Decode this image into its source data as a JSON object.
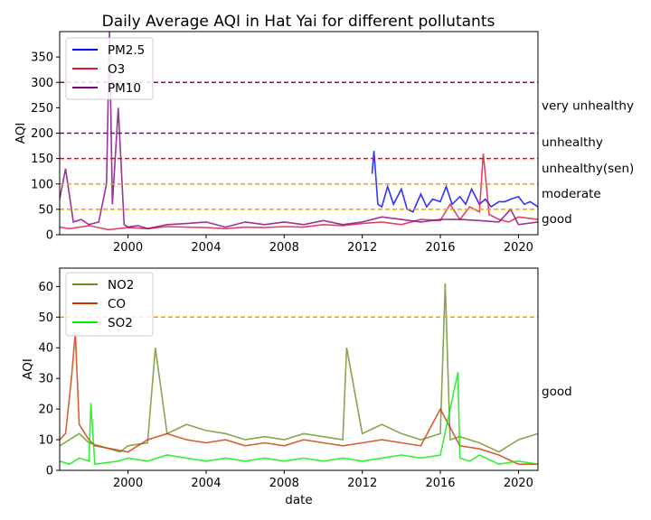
{
  "chart_data": [
    {
      "type": "line",
      "title": "Daily Average AQI in Hat Yai for different pollutants",
      "xlabel": "",
      "ylabel": "AQI",
      "xlim": [
        1996.5,
        2021.0
      ],
      "ylim": [
        0,
        400
      ],
      "xticks": [
        2000,
        2004,
        2008,
        2012,
        2016,
        2020
      ],
      "xtick_labels": [
        "2000",
        "2004",
        "2008",
        "2012",
        "2016",
        "2020"
      ],
      "yticks": [
        0,
        50,
        100,
        150,
        200,
        250,
        300,
        350
      ],
      "yticks_labels": [
        "0",
        "50",
        "100",
        "150",
        "200",
        "250",
        "300",
        "350"
      ],
      "legend": "top-left",
      "grid": false,
      "series": [
        {
          "name": "PM2.5",
          "color": "#0000ff",
          "x": [
            2012.5,
            2012.6,
            2012.8,
            2013.0,
            2013.3,
            2013.6,
            2014.0,
            2014.3,
            2014.6,
            2015.0,
            2015.3,
            2015.6,
            2016.0,
            2016.3,
            2016.6,
            2017.0,
            2017.3,
            2017.6,
            2018.0,
            2018.3,
            2018.6,
            2019.0,
            2019.3,
            2019.6,
            2020.0,
            2020.3,
            2020.6,
            2021.0
          ],
          "y": [
            120,
            165,
            60,
            55,
            95,
            60,
            90,
            50,
            45,
            80,
            55,
            70,
            65,
            95,
            60,
            75,
            60,
            90,
            60,
            70,
            55,
            65,
            65,
            70,
            75,
            60,
            65,
            55
          ]
        },
        {
          "name": "O3",
          "color": "#dc143c",
          "x": [
            1996.5,
            1997.0,
            1998.0,
            1999.0,
            2000.0,
            2001.0,
            2002.0,
            2003.0,
            2004.0,
            2005.0,
            2006.0,
            2007.0,
            2008.0,
            2009.0,
            2010.0,
            2011.0,
            2012.0,
            2013.0,
            2014.0,
            2015.0,
            2016.0,
            2016.5,
            2017.0,
            2017.5,
            2018.0,
            2018.2,
            2018.5,
            2019.0,
            2019.5,
            2020.0,
            2021.0
          ],
          "y": [
            15,
            12,
            18,
            10,
            14,
            12,
            16,
            15,
            14,
            12,
            15,
            14,
            16,
            15,
            20,
            18,
            22,
            25,
            20,
            30,
            28,
            60,
            30,
            55,
            45,
            160,
            40,
            30,
            25,
            35,
            30
          ]
        },
        {
          "name": "PM10",
          "color": "#800080",
          "x": [
            1996.5,
            1996.8,
            1997.2,
            1997.6,
            1998.0,
            1998.5,
            1998.9,
            1999.05,
            1999.2,
            1999.5,
            1999.8,
            2000.0,
            2000.5,
            2001.0,
            2002.0,
            2003.0,
            2004.0,
            2005.0,
            2006.0,
            2007.0,
            2008.0,
            2009.0,
            2010.0,
            2011.0,
            2012.0,
            2013.0,
            2014.0,
            2015.0,
            2016.0,
            2017.0,
            2018.0,
            2019.0,
            2019.6,
            2020.0,
            2021.0
          ],
          "y": [
            70,
            130,
            25,
            30,
            20,
            25,
            100,
            400,
            60,
            250,
            20,
            15,
            18,
            12,
            20,
            22,
            25,
            15,
            25,
            20,
            25,
            20,
            28,
            20,
            25,
            35,
            30,
            25,
            30,
            30,
            28,
            25,
            50,
            20,
            25
          ]
        }
      ],
      "threshold_lines": [
        {
          "value": 300,
          "color": "#800080",
          "label": "very unhealthy",
          "label_y": 255
        },
        {
          "value": 200,
          "color": "#800080",
          "label": "unhealthy",
          "label_y": 183
        },
        {
          "value": 150,
          "color": "#ff0000",
          "label": "unhealthy(sen)",
          "label_y": 132
        },
        {
          "value": 100,
          "color": "#e6a500",
          "label": "moderate",
          "label_y": 82
        },
        {
          "value": 50,
          "color": "#e6a500",
          "label": "good",
          "label_y": 32
        }
      ]
    },
    {
      "type": "line",
      "title": "",
      "xlabel": "date",
      "ylabel": "AQI",
      "xlim": [
        1996.5,
        2021.0
      ],
      "ylim": [
        0,
        66
      ],
      "xticks": [
        2000,
        2004,
        2008,
        2012,
        2016,
        2020
      ],
      "xtick_labels": [
        "2000",
        "2004",
        "2008",
        "2012",
        "2016",
        "2020"
      ],
      "yticks": [
        0,
        10,
        20,
        30,
        40,
        50,
        60
      ],
      "yticks_labels": [
        "0",
        "10",
        "20",
        "30",
        "40",
        "50",
        "60"
      ],
      "legend": "top-left",
      "grid": false,
      "series": [
        {
          "name": "NO2",
          "color": "#6b8e23",
          "x": [
            1996.5,
            1997.0,
            1997.5,
            1998.0,
            1999.6,
            2000.0,
            2001.0,
            2001.4,
            2002.0,
            2003.0,
            2004.0,
            2005.0,
            2006.0,
            2007.0,
            2008.0,
            2009.0,
            2010.0,
            2011.0,
            2011.2,
            2012.0,
            2013.0,
            2014.0,
            2015.0,
            2016.0,
            2016.25,
            2016.5,
            2017.0,
            2018.0,
            2019.0,
            2020.0,
            2021.0
          ],
          "y": [
            8,
            10,
            12,
            9,
            6,
            8,
            9,
            40,
            12,
            15,
            13,
            12,
            10,
            11,
            10,
            12,
            11,
            10,
            40,
            12,
            15,
            12,
            10,
            12,
            61,
            10,
            11,
            9,
            6,
            10,
            12
          ]
        },
        {
          "name": "CO",
          "color": "#cd3700",
          "x": [
            1996.5,
            1996.8,
            1997.1,
            1997.3,
            1997.5,
            1998.0,
            1998.3,
            2000.0,
            2001.0,
            2002.0,
            2003.0,
            2004.0,
            2005.0,
            2006.0,
            2007.0,
            2008.0,
            2009.0,
            2010.0,
            2011.0,
            2012.0,
            2013.0,
            2014.0,
            2015.0,
            2016.0,
            2017.0,
            2018.0,
            2019.0,
            2020.0,
            2021.0
          ],
          "y": [
            10,
            12,
            30,
            45,
            15,
            10,
            8,
            6,
            10,
            12,
            10,
            9,
            10,
            8,
            9,
            8,
            10,
            9,
            8,
            9,
            10,
            9,
            8,
            20,
            8,
            7,
            5,
            2,
            2
          ]
        },
        {
          "name": "SO2",
          "color": "#00ee00",
          "x": [
            1996.5,
            1997.0,
            1997.5,
            1998.0,
            1998.1,
            1998.3,
            1999.5,
            2000.0,
            2001.0,
            2002.0,
            2003.0,
            2004.0,
            2005.0,
            2006.0,
            2007.0,
            2008.0,
            2009.0,
            2010.0,
            2011.0,
            2012.0,
            2013.0,
            2014.0,
            2015.0,
            2016.0,
            2016.9,
            2017.0,
            2017.5,
            2018.0,
            2019.0,
            2020.0,
            2021.0
          ],
          "y": [
            3,
            2,
            4,
            3,
            22,
            2,
            3,
            4,
            3,
            5,
            4,
            3,
            4,
            3,
            4,
            3,
            4,
            3,
            4,
            3,
            4,
            5,
            4,
            5,
            32,
            4,
            3,
            5,
            2,
            3,
            2
          ]
        }
      ],
      "threshold_lines": [
        {
          "value": 50,
          "color": "#e6a500",
          "label": "good",
          "label_y": 26
        }
      ]
    }
  ]
}
